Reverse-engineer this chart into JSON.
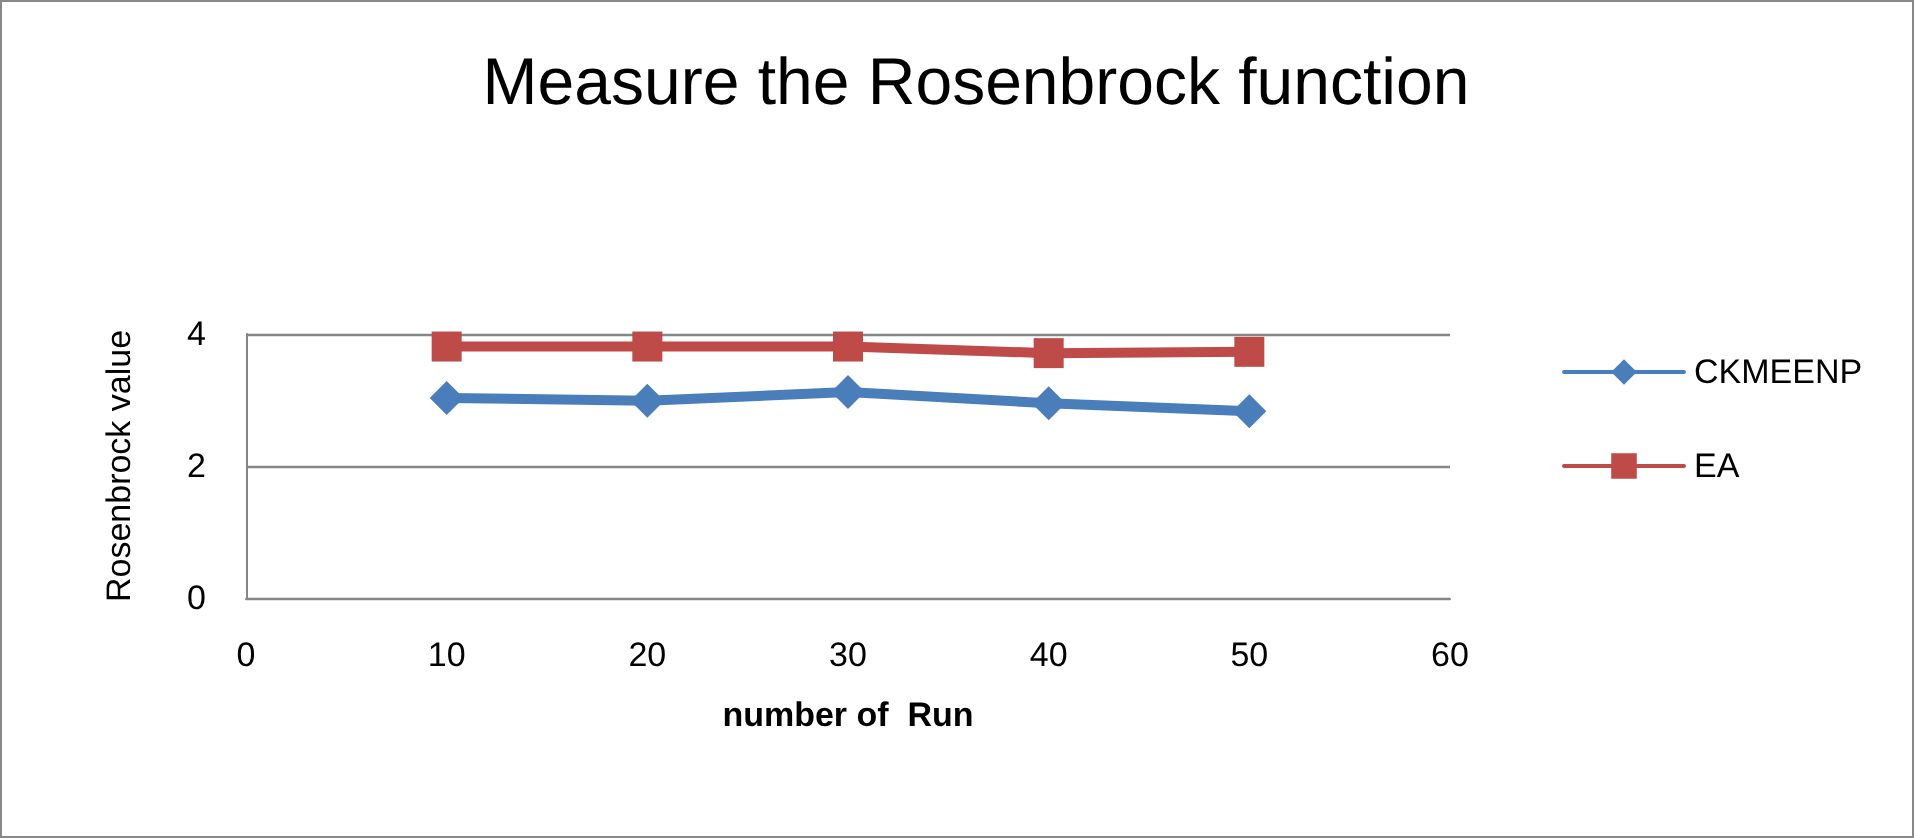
{
  "chart_data": {
    "type": "line",
    "title": "Measure the Rosenbrock function",
    "xlabel": "number of  Run",
    "ylabel": "Rosenbrock value",
    "x": [
      10,
      20,
      30,
      40,
      50
    ],
    "series": [
      {
        "name": "CKMEENP",
        "color": "#4a7ebb",
        "marker": "diamond",
        "values": [
          3.03,
          2.99,
          3.12,
          2.95,
          2.83
        ]
      },
      {
        "name": "EA",
        "color": "#be4b48",
        "marker": "square",
        "values": [
          3.81,
          3.81,
          3.81,
          3.71,
          3.73
        ]
      }
    ],
    "xlim": [
      0,
      60
    ],
    "xticks": [
      0,
      10,
      20,
      30,
      40,
      50,
      60
    ],
    "ylim": [
      0,
      4
    ],
    "yticks": [
      0,
      2,
      4
    ],
    "grid": "y",
    "legend": "right"
  }
}
